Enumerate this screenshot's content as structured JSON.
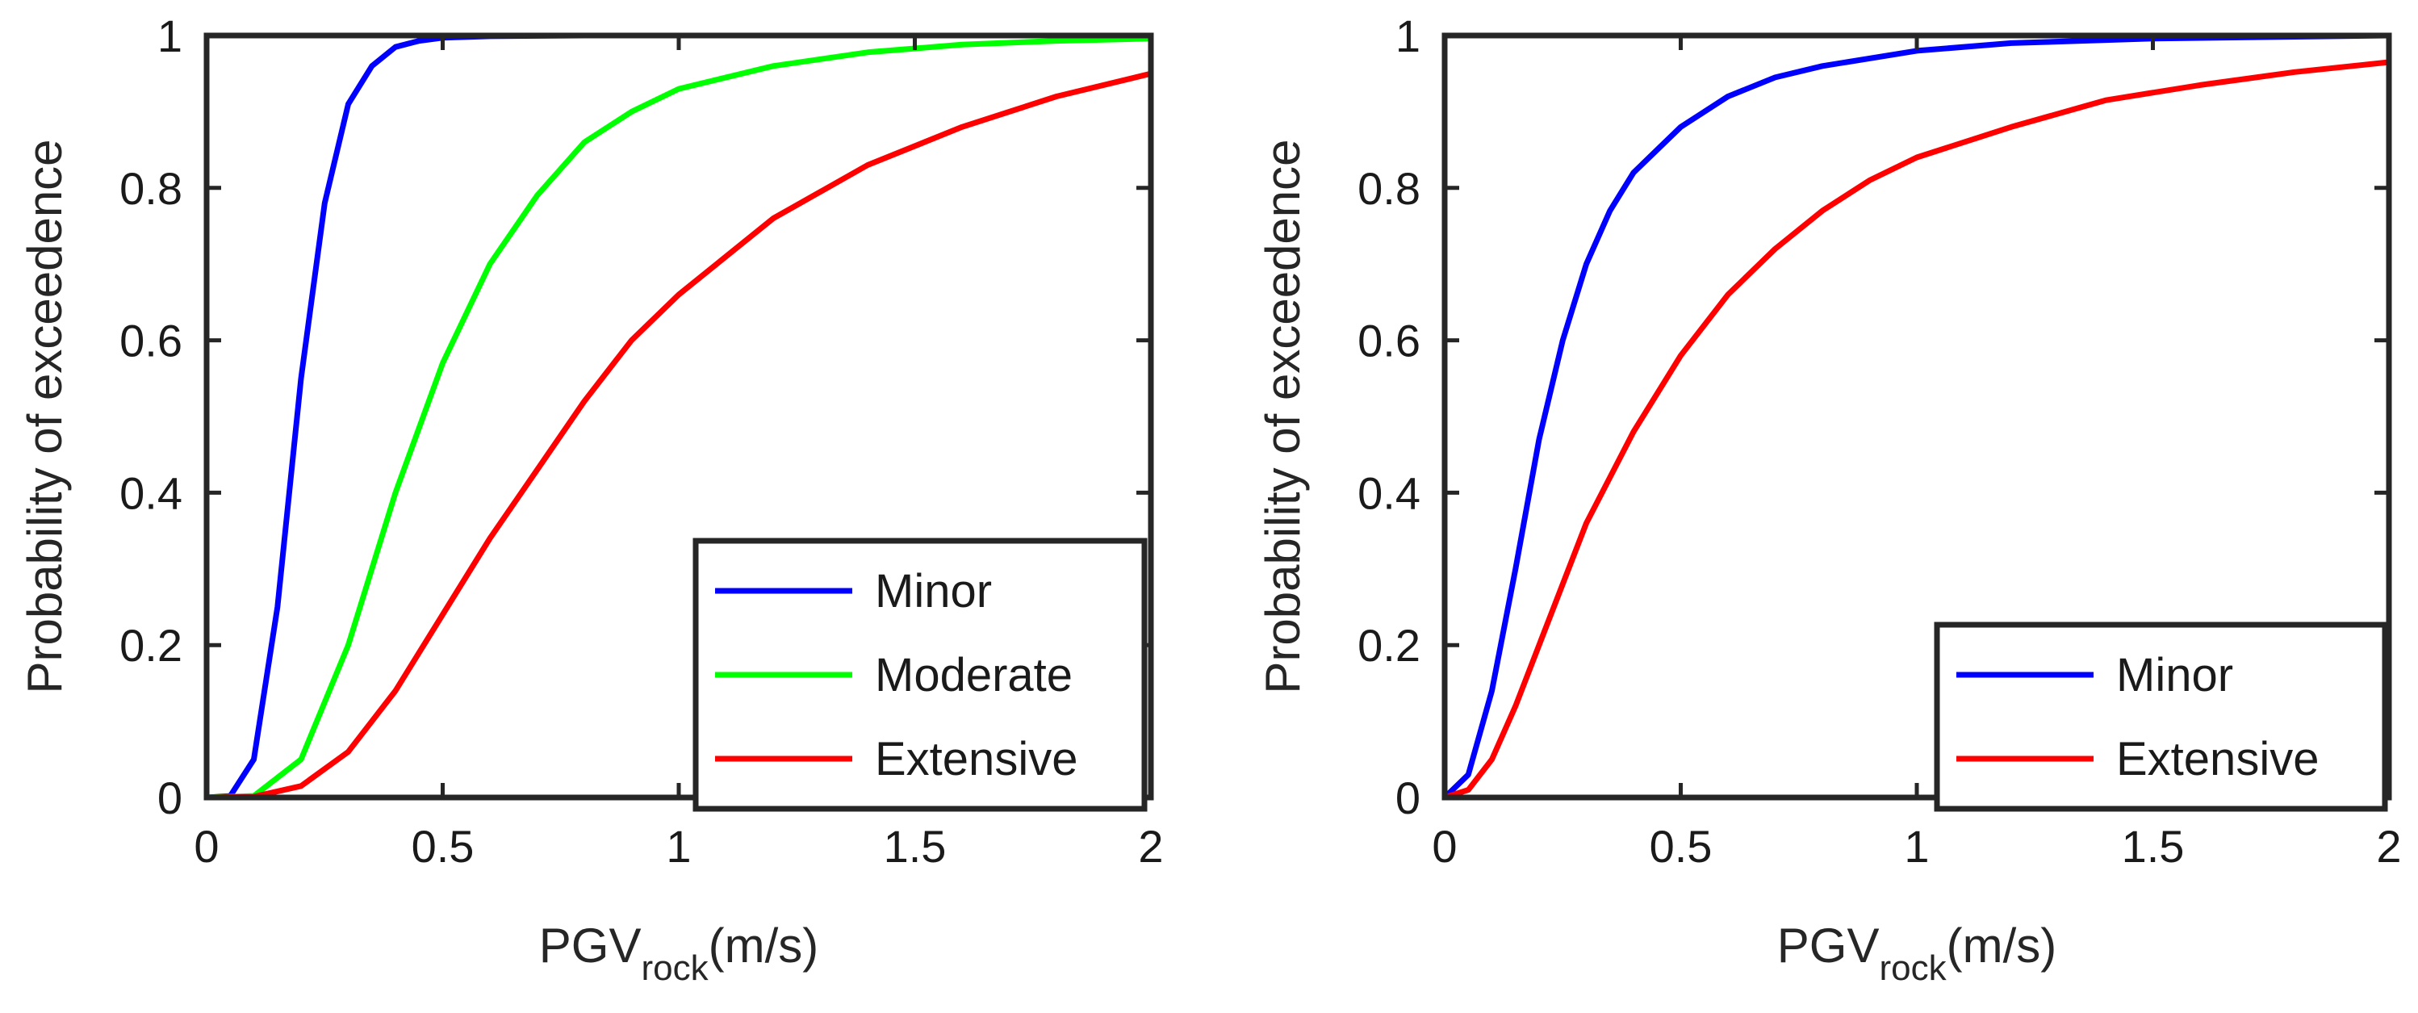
{
  "chart_data": [
    {
      "type": "line",
      "title": "",
      "xlabel": "PGV",
      "xlabel_sub": "rock",
      "xlabel_unit": "(m/s)",
      "ylabel": "Probability of exceedence",
      "xlim": [
        0,
        2
      ],
      "ylim": [
        0,
        1
      ],
      "xticks": [
        0,
        0.5,
        1,
        1.5,
        2
      ],
      "xtick_labels": [
        "0",
        "0.5",
        "1",
        "1.5",
        "2"
      ],
      "yticks": [
        0,
        0.2,
        0.4,
        0.6,
        0.8,
        1
      ],
      "ytick_labels": [
        "0",
        "0.2",
        "0.4",
        "0.6",
        "0.8",
        "1"
      ],
      "grid": false,
      "legend_position": "bottom-right",
      "series": [
        {
          "name": "Minor",
          "color": "#0000ff",
          "x": [
            0,
            0.05,
            0.1,
            0.15,
            0.2,
            0.25,
            0.3,
            0.35,
            0.4,
            0.45,
            0.5,
            0.6,
            0.8,
            1,
            2
          ],
          "y": [
            0,
            0.002,
            0.05,
            0.25,
            0.55,
            0.78,
            0.91,
            0.96,
            0.985,
            0.993,
            0.997,
            0.999,
            1,
            1,
            1
          ]
        },
        {
          "name": "Moderate",
          "color": "#00ff00",
          "x": [
            0,
            0.1,
            0.2,
            0.3,
            0.4,
            0.5,
            0.6,
            0.7,
            0.8,
            0.9,
            1,
            1.2,
            1.4,
            1.6,
            1.8,
            2
          ],
          "y": [
            0,
            0.002,
            0.05,
            0.2,
            0.4,
            0.57,
            0.7,
            0.79,
            0.86,
            0.9,
            0.93,
            0.96,
            0.978,
            0.988,
            0.993,
            0.996
          ]
        },
        {
          "name": "Extensive",
          "color": "#ff0000",
          "x": [
            0,
            0.1,
            0.2,
            0.3,
            0.4,
            0.5,
            0.6,
            0.7,
            0.8,
            0.9,
            1,
            1.2,
            1.4,
            1.6,
            1.8,
            2
          ],
          "y": [
            0,
            0.001,
            0.015,
            0.06,
            0.14,
            0.24,
            0.34,
            0.43,
            0.52,
            0.6,
            0.66,
            0.76,
            0.83,
            0.88,
            0.92,
            0.95
          ]
        }
      ]
    },
    {
      "type": "line",
      "title": "",
      "xlabel": "PGV",
      "xlabel_sub": "rock",
      "xlabel_unit": "(m/s)",
      "ylabel": "Probability of exceedence",
      "xlim": [
        0,
        2
      ],
      "ylim": [
        0,
        1
      ],
      "xticks": [
        0,
        0.5,
        1,
        1.5,
        2
      ],
      "xtick_labels": [
        "0",
        "0.5",
        "1",
        "1.5",
        "2"
      ],
      "yticks": [
        0,
        0.2,
        0.4,
        0.6,
        0.8,
        1
      ],
      "ytick_labels": [
        "0",
        "0.2",
        "0.4",
        "0.6",
        "0.8",
        "1"
      ],
      "grid": false,
      "legend_position": "bottom-right",
      "series": [
        {
          "name": "Minor",
          "color": "#0000ff",
          "x": [
            0,
            0.05,
            0.1,
            0.15,
            0.2,
            0.25,
            0.3,
            0.35,
            0.4,
            0.5,
            0.6,
            0.7,
            0.8,
            1,
            1.2,
            1.5,
            2
          ],
          "y": [
            0,
            0.03,
            0.14,
            0.3,
            0.47,
            0.6,
            0.7,
            0.77,
            0.82,
            0.88,
            0.92,
            0.945,
            0.96,
            0.98,
            0.99,
            0.996,
            1
          ]
        },
        {
          "name": "Extensive",
          "color": "#ff0000",
          "x": [
            0,
            0.05,
            0.1,
            0.15,
            0.2,
            0.3,
            0.4,
            0.5,
            0.6,
            0.7,
            0.8,
            0.9,
            1,
            1.2,
            1.4,
            1.6,
            1.8,
            2
          ],
          "y": [
            0,
            0.01,
            0.05,
            0.12,
            0.2,
            0.36,
            0.48,
            0.58,
            0.66,
            0.72,
            0.77,
            0.81,
            0.84,
            0.88,
            0.915,
            0.935,
            0.952,
            0.965
          ]
        }
      ]
    }
  ]
}
